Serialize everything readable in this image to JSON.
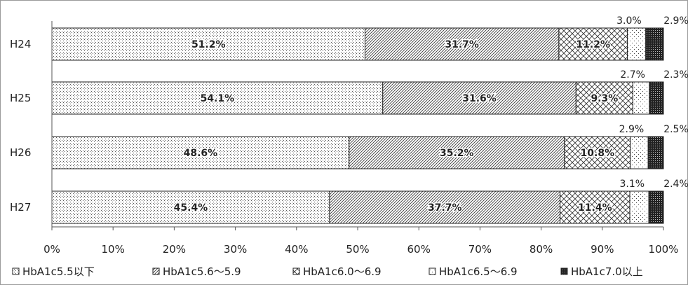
{
  "chart_data": {
    "type": "bar",
    "orientation": "horizontal",
    "stacked": "percent",
    "categories": [
      "H24",
      "H25",
      "H26",
      "H27"
    ],
    "series": [
      {
        "name": "HbA1c5.5以下",
        "values": [
          51.2,
          54.1,
          48.6,
          45.4
        ],
        "labels": [
          "51.2%",
          "54.1%",
          "48.6%",
          "45.4%"
        ]
      },
      {
        "name": "HbA1c5.6～5.9",
        "values": [
          31.7,
          31.6,
          35.2,
          37.7
        ],
        "labels": [
          "31.7%",
          "31.6%",
          "35.2%",
          "37.7%"
        ]
      },
      {
        "name": "HbA1c6.0～6.9",
        "values": [
          11.2,
          9.3,
          10.8,
          11.4
        ],
        "labels": [
          "11.2%",
          "9.3%",
          "10.8%",
          "11.4%"
        ]
      },
      {
        "name": "HbA1c6.5～6.9",
        "values": [
          3.0,
          2.7,
          2.9,
          3.1
        ],
        "labels": [
          "3.0%",
          "2.7%",
          "2.9%",
          "3.1%"
        ]
      },
      {
        "name": "HbA1c7.0以上",
        "values": [
          2.9,
          2.3,
          2.5,
          2.4
        ],
        "labels": [
          "2.9%",
          "2.3%",
          "2.5%",
          "2.4%"
        ]
      }
    ],
    "x_ticks": [
      "0%",
      "10%",
      "20%",
      "30%",
      "40%",
      "50%",
      "60%",
      "70%",
      "80%",
      "90%",
      "100%"
    ],
    "xlim": [
      0,
      100
    ],
    "legend_position": "bottom",
    "grid": false,
    "title": "",
    "xlabel": "",
    "ylabel": ""
  }
}
